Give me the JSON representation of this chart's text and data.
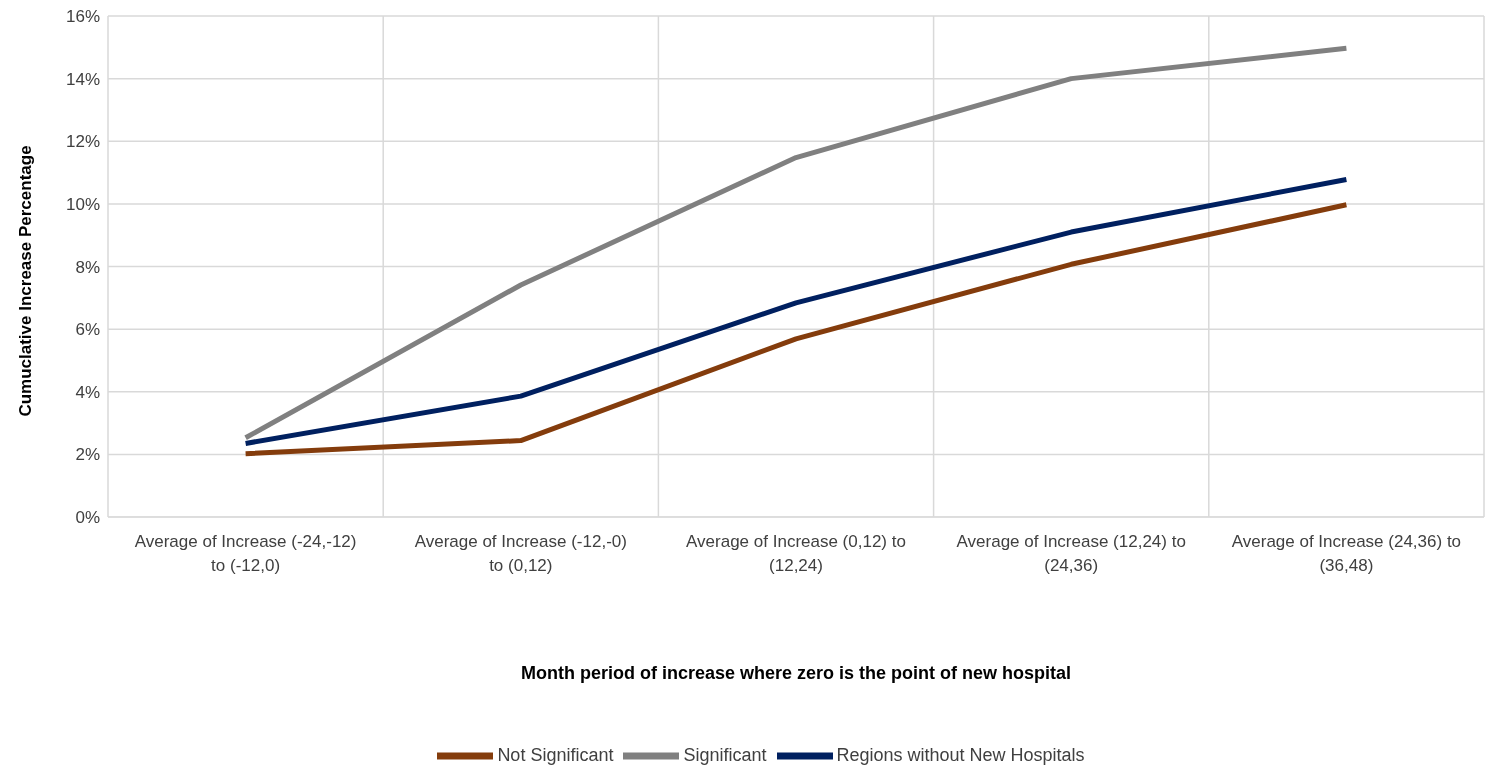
{
  "chart_data": {
    "type": "line",
    "xlabel": "Month period of increase where zero is the point of new hospital",
    "ylabel": "Cumuclative Increase Percentage",
    "categories": [
      "Average of Increase (-24,-12) to (-12,0)",
      "Average of Increase (-12,-0) to (0,12)",
      "Average of Increase (0,12) to (12,24)",
      "Average of Increase (12,24) to (24,36)",
      "Average of Increase (24,36) to (36,48)"
    ],
    "series": [
      {
        "name": "Not Significant",
        "color": "#843c0c",
        "values": [
          2.02,
          2.44,
          5.69,
          8.07,
          9.97
        ]
      },
      {
        "name": "Significant",
        "color": "#808080",
        "values": [
          2.53,
          7.41,
          11.48,
          14.0,
          14.97
        ]
      },
      {
        "name": "Regions without New Hospitals",
        "color": "#002060",
        "values": [
          2.35,
          3.86,
          6.84,
          9.1,
          10.78
        ]
      }
    ],
    "ylim": [
      0,
      16
    ],
    "yticks": [
      {
        "value": 0,
        "label": "0%"
      },
      {
        "value": 2,
        "label": "2%"
      },
      {
        "value": 4,
        "label": "4%"
      },
      {
        "value": 6,
        "label": "6%"
      },
      {
        "value": 8,
        "label": "8%"
      },
      {
        "value": 10,
        "label": "10%"
      },
      {
        "value": 12,
        "label": "12%"
      },
      {
        "value": 14,
        "label": "14%"
      },
      {
        "value": 16,
        "label": "16%"
      }
    ],
    "grid": true,
    "legend": "bottom",
    "marker": "none",
    "line_style": "solid"
  }
}
